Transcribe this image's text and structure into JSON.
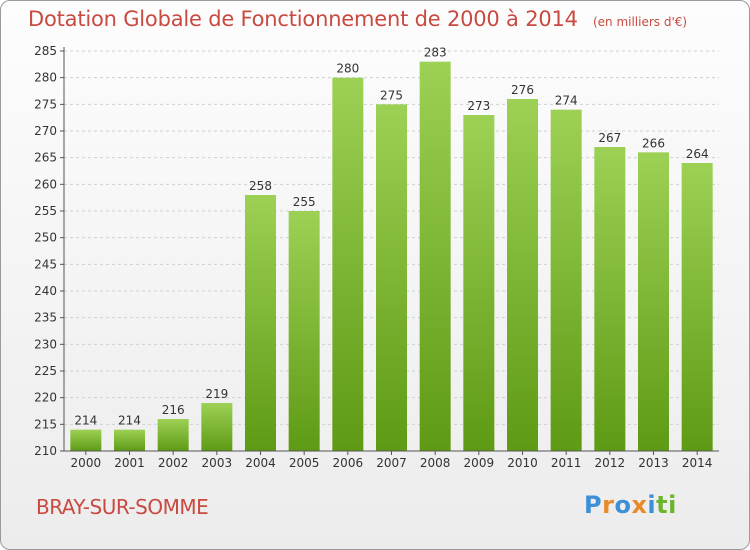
{
  "header": {
    "title": "Dotation Globale de Fonctionnement de 2000 à 2014",
    "unit": "(en milliers d'€)"
  },
  "footer": {
    "commune": "BRAY-SUR-SOMME",
    "logo": "Proxiti"
  },
  "colors": {
    "title": "#c84a40",
    "bar_top": "#9dd155",
    "bar_bottom": "#5e9a14",
    "grid": "#d0d0d0",
    "logo_letters": [
      "#3d8fd6",
      "#e8892a",
      "#3d8fd6",
      "#e8892a",
      "#3d8fd6",
      "#6bb52b",
      "#6bb52b"
    ]
  },
  "chart_data": {
    "type": "bar",
    "title": "Dotation Globale de Fonctionnement de 2000 à 2014",
    "subtitle": "(en milliers d'€)",
    "xlabel": "",
    "ylabel": "",
    "categories": [
      "2000",
      "2001",
      "2002",
      "2003",
      "2004",
      "2005",
      "2006",
      "2007",
      "2008",
      "2009",
      "2010",
      "2011",
      "2012",
      "2013",
      "2014"
    ],
    "values": [
      214,
      214,
      216,
      219,
      258,
      255,
      280,
      275,
      283,
      273,
      276,
      274,
      267,
      266,
      264
    ],
    "ylim": [
      210,
      285
    ],
    "yticks": [
      210,
      215,
      220,
      225,
      230,
      235,
      240,
      245,
      250,
      255,
      260,
      265,
      270,
      275,
      280,
      285
    ],
    "grid": true,
    "legend": "none"
  }
}
